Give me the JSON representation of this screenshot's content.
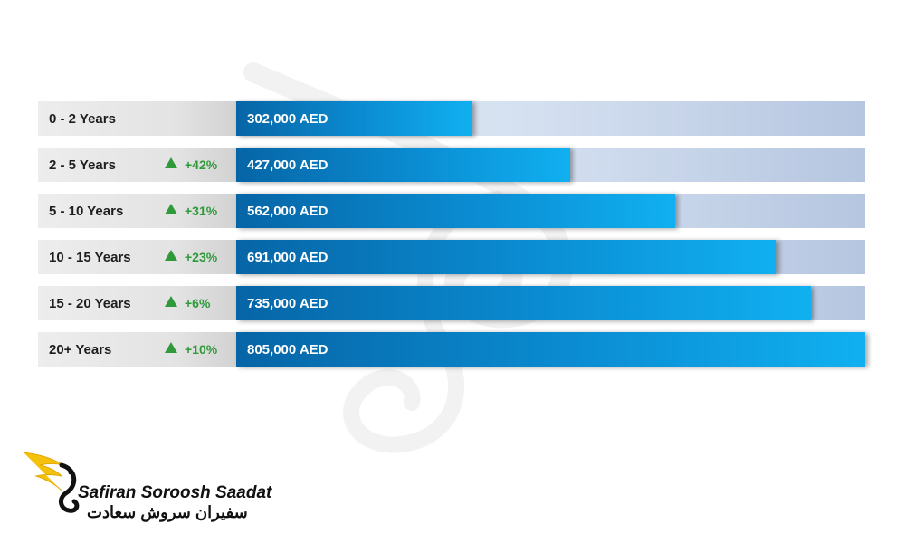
{
  "chart_data": {
    "type": "bar",
    "orientation": "horizontal",
    "unit": "AED",
    "xlim": [
      0,
      805000
    ],
    "categories": [
      "0 - 2 Years",
      "2 - 5 Years",
      "5 - 10 Years",
      "10 - 15 Years",
      "15 - 20 Years",
      "20+ Years"
    ],
    "values": [
      302000,
      427000,
      562000,
      691000,
      735000,
      805000
    ],
    "value_labels": [
      "302,000 AED",
      "427,000 AED",
      "562,000 AED",
      "691,000 AED",
      "735,000 AED",
      "805,000 AED"
    ],
    "growth": [
      "",
      "+42%",
      "+31%",
      "+23%",
      "+6%",
      "+10%"
    ],
    "colors": {
      "bar": "#0b8dd3",
      "track": "#c9d6ea",
      "growth": "#2e9a3a"
    }
  },
  "brand": {
    "name_en": "Safiran Soroosh Saadat",
    "name_fa": "سفیران سروش سعادت"
  }
}
